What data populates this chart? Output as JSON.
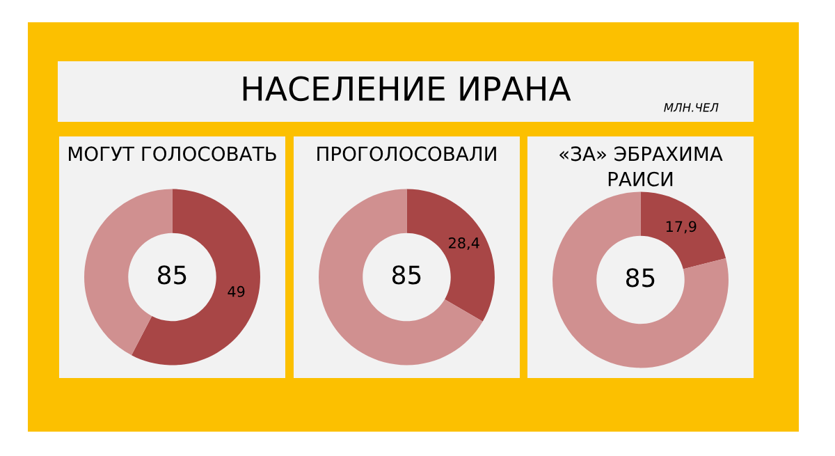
{
  "chart_data": [
    {
      "type": "other",
      "title": "НАСЕЛЕНИЕ ИРАНА",
      "subtitle": "МЛН.ЧЕЛ"
    },
    {
      "type": "donut",
      "title": "МОГУТ ГОЛОСОВАТЬ",
      "categories": [
        null,
        null
      ],
      "values": [
        49,
        36
      ],
      "colors": [
        "#a84646",
        "#d09090"
      ],
      "value_labels": [
        "49",
        null
      ],
      "annotations": [
        "85"
      ]
    },
    {
      "type": "donut",
      "title": "ПРОГОЛОСОВАЛИ",
      "categories": [
        null,
        null
      ],
      "values": [
        28.4,
        56.6
      ],
      "colors": [
        "#a84646",
        "#d09090"
      ],
      "value_labels": [
        "28,4",
        null
      ],
      "annotations": [
        "85"
      ]
    },
    {
      "type": "donut",
      "title": "«ЗА» ЭБРАХИМА РАИСИ",
      "categories": [
        null,
        null
      ],
      "values": [
        17.9,
        67.1
      ],
      "colors": [
        "#a84646",
        "#d09090"
      ],
      "value_labels": [
        "17,9",
        null
      ],
      "annotations": [
        "85"
      ]
    }
  ]
}
